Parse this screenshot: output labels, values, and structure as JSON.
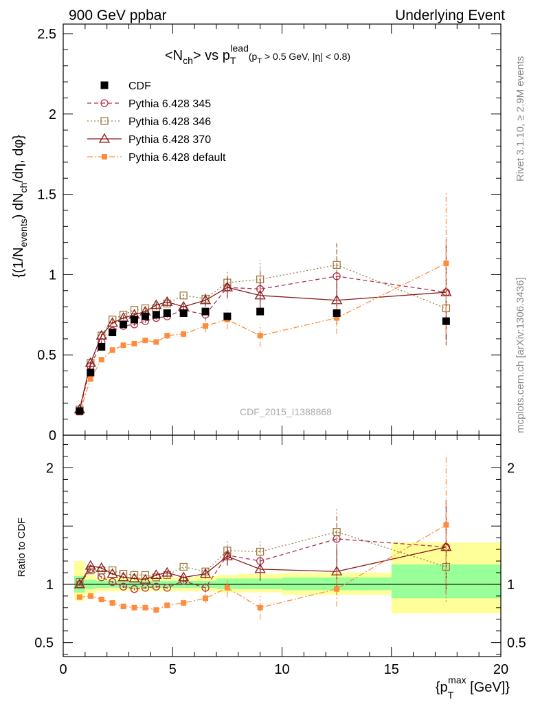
{
  "header": {
    "left": "900 GeV ppbar",
    "right": "Underlying Event",
    "watermark": "CDF_2015_I1388868",
    "side_top": "Rivet 3.1.10, ≥ 2.9M events",
    "side_bottom": "mcplots.cern.ch [arXiv:1306.3436]"
  },
  "chart_data": [
    {
      "type": "line",
      "title": "<Nch> vs pT^lead (pT > 0.5 GeV, |η| < 0.8)",
      "ylabel": "{(1/N_events) dN_ch/dη, dφ}",
      "xlabel": "{pT^max [GeV]}",
      "xlim": [
        0,
        20
      ],
      "ylim": [
        0,
        2.56
      ],
      "x_ticks": [
        "0",
        "5",
        "10",
        "15",
        "20"
      ],
      "y_ticks": [
        "0",
        "0.5",
        "1",
        "1.5",
        "2",
        "2.5"
      ],
      "x": [
        0.75,
        1.25,
        1.75,
        2.25,
        2.75,
        3.25,
        3.75,
        4.25,
        4.75,
        5.5,
        6.5,
        7.5,
        9.0,
        12.5,
        17.5
      ],
      "series": [
        {
          "name": "CDF",
          "color": "#000000",
          "values": [
            0.15,
            0.39,
            0.55,
            0.64,
            0.69,
            0.72,
            0.74,
            0.75,
            0.76,
            0.76,
            0.77,
            0.74,
            0.77,
            0.76,
            0.71
          ]
        },
        {
          "name": "Pythia 6.428 345",
          "color": "#b0304a",
          "values": [
            0.15,
            0.43,
            0.58,
            0.65,
            0.68,
            0.69,
            0.71,
            0.73,
            0.74,
            0.78,
            0.75,
            0.92,
            0.91,
            0.99,
            0.89
          ],
          "errors": [
            0.01,
            0.01,
            0.01,
            0.01,
            0.01,
            0.01,
            0.01,
            0.01,
            0.01,
            0.02,
            0.04,
            0.07,
            0.13,
            0.2,
            0.33
          ]
        },
        {
          "name": "Pythia 6.428 346",
          "color": "#9c7c3c",
          "values": [
            0.16,
            0.45,
            0.62,
            0.72,
            0.75,
            0.78,
            0.79,
            0.79,
            0.82,
            0.87,
            0.85,
            0.95,
            0.97,
            1.06,
            0.79
          ],
          "errors": [
            0.01,
            0.01,
            0.01,
            0.01,
            0.01,
            0.01,
            0.01,
            0.01,
            0.02,
            0.02,
            0.04,
            0.07,
            0.12,
            0.15,
            0.22
          ]
        },
        {
          "name": "Pythia 6.428 370",
          "color": "#8b1a1a",
          "values": [
            0.16,
            0.45,
            0.62,
            0.7,
            0.73,
            0.75,
            0.77,
            0.81,
            0.83,
            0.8,
            0.84,
            0.92,
            0.87,
            0.84,
            0.89
          ],
          "errors": [
            0.01,
            0.01,
            0.01,
            0.01,
            0.01,
            0.01,
            0.01,
            0.02,
            0.02,
            0.02,
            0.04,
            0.06,
            0.1,
            0.15,
            0.3
          ]
        },
        {
          "name": "Pythia 6.428 default",
          "color": "#ff8c3c",
          "values": [
            0.14,
            0.35,
            0.47,
            0.53,
            0.56,
            0.57,
            0.59,
            0.58,
            0.62,
            0.63,
            0.68,
            0.72,
            0.62,
            0.73,
            1.07
          ],
          "errors": [
            0.01,
            0.01,
            0.01,
            0.01,
            0.01,
            0.01,
            0.01,
            0.01,
            0.02,
            0.02,
            0.04,
            0.06,
            0.07,
            0.1,
            0.44
          ]
        }
      ]
    },
    {
      "type": "line",
      "ylabel": "Ratio to CDF",
      "xlabel": "{pT^max [GeV]}",
      "xlim": [
        0,
        20
      ],
      "ylim": [
        0.38,
        2.28
      ],
      "y_ticks": [
        "0.5",
        "1",
        "2"
      ],
      "band_edges": [
        0.5,
        1.0,
        1.5,
        2.0,
        2.5,
        3.0,
        3.5,
        4.0,
        4.5,
        5.0,
        6.0,
        7.0,
        8.0,
        10.0,
        15.0,
        20.0
      ],
      "inner_band": [
        [
          0.93,
          1.07
        ],
        [
          0.96,
          1.04
        ],
        [
          0.97,
          1.03
        ],
        [
          0.97,
          1.03
        ],
        [
          0.97,
          1.03
        ],
        [
          0.97,
          1.03
        ],
        [
          0.97,
          1.03
        ],
        [
          0.97,
          1.03
        ],
        [
          0.97,
          1.03
        ],
        [
          0.97,
          1.03
        ],
        [
          0.97,
          1.03
        ],
        [
          0.96,
          1.05
        ],
        [
          0.96,
          1.05
        ],
        [
          0.95,
          1.06
        ],
        [
          0.88,
          1.17
        ]
      ],
      "outer_band": [
        [
          0.86,
          1.2
        ],
        [
          0.92,
          1.08
        ],
        [
          0.94,
          1.06
        ],
        [
          0.94,
          1.06
        ],
        [
          0.94,
          1.06
        ],
        [
          0.94,
          1.06
        ],
        [
          0.94,
          1.06
        ],
        [
          0.94,
          1.06
        ],
        [
          0.94,
          1.06
        ],
        [
          0.94,
          1.06
        ],
        [
          0.94,
          1.07
        ],
        [
          0.93,
          1.08
        ],
        [
          0.93,
          1.09
        ],
        [
          0.91,
          1.1
        ],
        [
          0.75,
          1.36
        ]
      ],
      "series": [
        {
          "name": "Pythia 6.428 345",
          "values": [
            1.0,
            1.13,
            1.06,
            1.02,
            0.98,
            0.96,
            0.97,
            0.98,
            0.97,
            1.03,
            0.97,
            1.25,
            1.2,
            1.39,
            1.32
          ],
          "errors": [
            0.01,
            0.01,
            0.01,
            0.01,
            0.01,
            0.01,
            0.01,
            0.01,
            0.01,
            0.02,
            0.04,
            0.08,
            0.1,
            0.2,
            0.4
          ]
        },
        {
          "name": "Pythia 6.428 346",
          "values": [
            1.02,
            1.12,
            1.12,
            1.12,
            1.09,
            1.08,
            1.08,
            1.06,
            1.08,
            1.15,
            1.11,
            1.29,
            1.28,
            1.45,
            1.15
          ],
          "errors": [
            0.01,
            0.01,
            0.01,
            0.01,
            0.01,
            0.01,
            0.01,
            0.01,
            0.02,
            0.02,
            0.04,
            0.08,
            0.1,
            0.2,
            0.3
          ]
        },
        {
          "name": "Pythia 6.428 370",
          "values": [
            1.0,
            1.16,
            1.14,
            1.09,
            1.06,
            1.05,
            1.04,
            1.08,
            1.1,
            1.06,
            1.09,
            1.24,
            1.13,
            1.11,
            1.32
          ],
          "errors": [
            0.01,
            0.01,
            0.01,
            0.01,
            0.01,
            0.01,
            0.01,
            0.01,
            0.02,
            0.02,
            0.04,
            0.08,
            0.1,
            0.2,
            0.4
          ]
        },
        {
          "name": "Pythia 6.428 default",
          "values": [
            0.89,
            0.9,
            0.87,
            0.84,
            0.81,
            0.8,
            0.8,
            0.78,
            0.82,
            0.84,
            0.88,
            0.97,
            0.8,
            0.96,
            1.51
          ],
          "errors": [
            0.01,
            0.01,
            0.01,
            0.01,
            0.01,
            0.01,
            0.01,
            0.01,
            0.02,
            0.02,
            0.04,
            0.08,
            0.1,
            0.15,
            0.6
          ]
        }
      ]
    }
  ]
}
